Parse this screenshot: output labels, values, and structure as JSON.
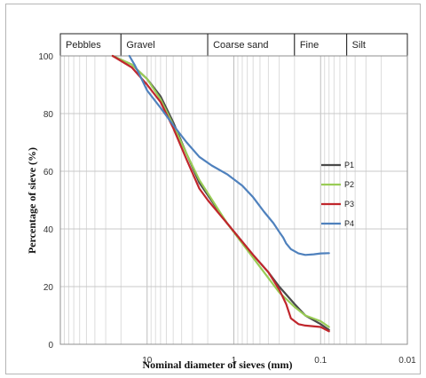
{
  "chart_data": {
    "type": "line",
    "xlabel": "Nominal diameter of sieves (mm)",
    "ylabel": "Percentage of sieve (%)",
    "x_scale": "log",
    "x_reversed": true,
    "xlim": [
      100,
      0.01
    ],
    "ylim": [
      0,
      100
    ],
    "x_ticks": [
      {
        "value": 10,
        "label": "10"
      },
      {
        "value": 1,
        "label": "1"
      },
      {
        "value": 0.1,
        "label": "0.1"
      },
      {
        "value": 0.01,
        "label": "0.01"
      }
    ],
    "y_ticks": [
      0,
      20,
      40,
      60,
      80,
      100
    ],
    "grid": true,
    "legend_position": "right",
    "size_bands": [
      {
        "label": "Pebbles",
        "from": 100,
        "to": 20
      },
      {
        "label": "Gravel",
        "from": 20,
        "to": 2
      },
      {
        "label": "Coarse sand",
        "from": 2,
        "to": 0.2
      },
      {
        "label": "Fine",
        "from": 0.2,
        "to": 0.05
      },
      {
        "label": "Silt",
        "from": 0.05,
        "to": 0.01
      }
    ],
    "series": [
      {
        "name": "P1",
        "color": "#4a4a4a",
        "x": [
          25,
          15,
          10,
          7,
          5,
          3.5,
          2.5,
          1.2,
          0.6,
          0.4,
          0.3,
          0.2,
          0.15,
          0.1,
          0.08
        ],
        "y": [
          100,
          97,
          92,
          86,
          77,
          66,
          56,
          42,
          31,
          25,
          20,
          14,
          10,
          7,
          5
        ]
      },
      {
        "name": "P2",
        "color": "#99cc55",
        "x": [
          25,
          15,
          10,
          7,
          5,
          3.5,
          2.5,
          1.2,
          0.6,
          0.4,
          0.3,
          0.2,
          0.15,
          0.1,
          0.08
        ],
        "y": [
          100,
          97,
          92,
          85,
          76,
          66,
          57,
          42,
          30,
          23,
          18,
          13,
          10,
          8,
          6
        ]
      },
      {
        "name": "P3",
        "color": "#c0262c",
        "x": [
          25,
          15,
          10,
          7,
          5,
          3.5,
          2.5,
          2,
          1.2,
          0.6,
          0.4,
          0.3,
          0.25,
          0.22,
          0.18,
          0.15,
          0.1,
          0.08
        ],
        "y": [
          100,
          96,
          90,
          84,
          75,
          64,
          54,
          50,
          42,
          31,
          25,
          19,
          14,
          9,
          7,
          6.5,
          6,
          4.5
        ]
      },
      {
        "name": "P4",
        "color": "#4f81bd",
        "x": [
          16,
          14,
          12,
          10,
          7,
          5,
          3.5,
          2.5,
          1.8,
          1.2,
          0.8,
          0.6,
          0.45,
          0.35,
          0.3,
          0.27,
          0.25,
          0.22,
          0.18,
          0.15,
          0.12,
          0.1,
          0.08
        ],
        "y": [
          100,
          97,
          93,
          88,
          82,
          76,
          70,
          65,
          62,
          59,
          55,
          51,
          46,
          42,
          39,
          37,
          35,
          33,
          31.5,
          31,
          31.2,
          31.5,
          31.6
        ]
      }
    ]
  }
}
